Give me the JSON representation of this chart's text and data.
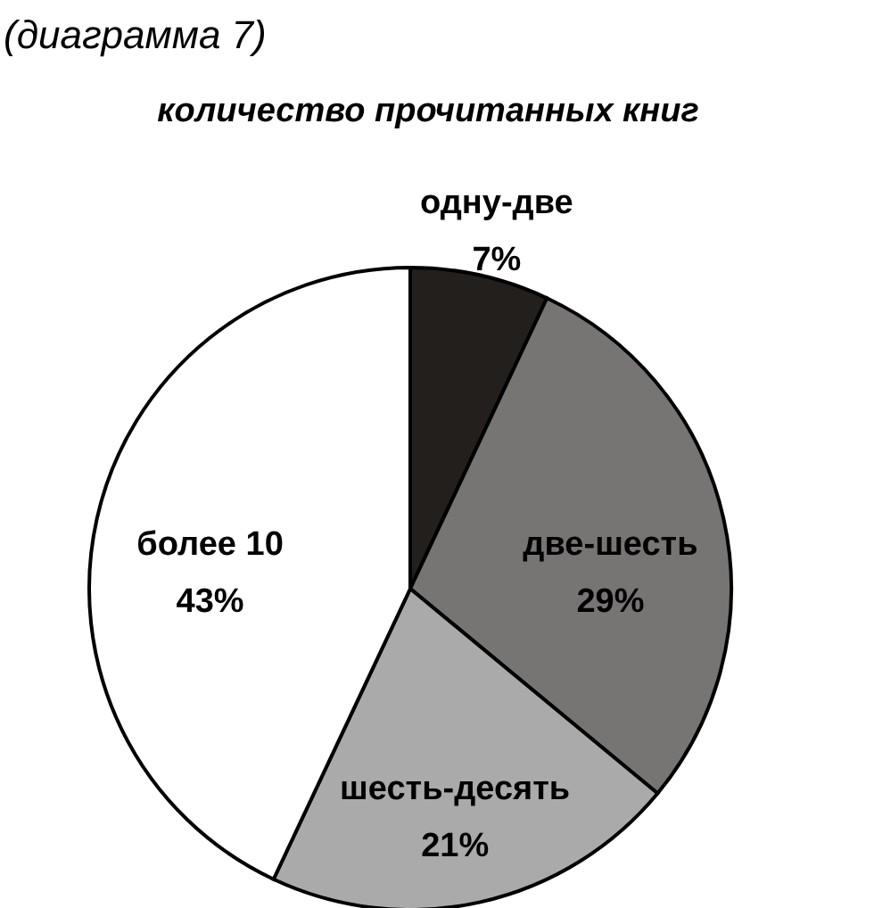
{
  "chart_data": {
    "type": "pie",
    "title": "(диаграмма  7)",
    "subtitle": "количество  прочитанных  книг",
    "categories": [
      "одну-две",
      "две-шесть",
      "шесть-десять",
      "более  10"
    ],
    "values": [
      7,
      29,
      21,
      43
    ],
    "value_labels": [
      "7%",
      "29%",
      "21%",
      "43%"
    ],
    "colors": [
      "#231f1c",
      "#777474",
      "#aaaaaa",
      "#ffffff"
    ]
  }
}
